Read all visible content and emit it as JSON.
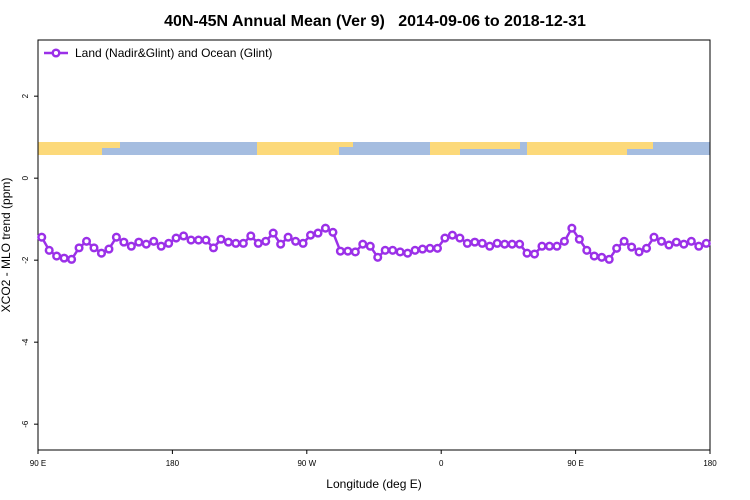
{
  "chart_data": {
    "type": "line",
    "title": "40N-45N Annual Mean (Ver 9)   2014-09-06 to 2018-12-31",
    "x_label": "Longitude (deg E)",
    "y_label": "XCO2 - MLO trend (ppm)",
    "xlim": [
      90,
      540
    ],
    "ylim": [
      -6.63,
      3.37
    ],
    "xticks": [
      {
        "value": 90,
        "label": "90 E"
      },
      {
        "value": 180,
        "label": "180"
      },
      {
        "value": 270,
        "label": "90 W"
      },
      {
        "value": 360,
        "label": "0"
      },
      {
        "value": 450,
        "label": "90 E"
      },
      {
        "value": 540,
        "label": "180"
      }
    ],
    "yticks": [
      2,
      0,
      -2,
      -4,
      -6
    ],
    "legend": "top-left",
    "series": [
      {
        "name": "Land (Nadir&Glint) and Ocean (Glint)",
        "color": "#9b30e8",
        "x": [
          92.5,
          97.5,
          102.5,
          107.5,
          112.5,
          117.5,
          122.5,
          127.5,
          132.5,
          137.5,
          142.5,
          147.5,
          152.5,
          157.5,
          162.5,
          167.5,
          172.5,
          177.5,
          182.5,
          187.5,
          192.5,
          197.5,
          202.5,
          207.5,
          212.5,
          217.5,
          222.5,
          227.5,
          232.5,
          237.5,
          242.5,
          247.5,
          252.5,
          257.5,
          262.5,
          267.5,
          272.5,
          277.5,
          282.5,
          287.5,
          292.5,
          297.5,
          302.5,
          307.5,
          312.5,
          317.5,
          322.5,
          327.5,
          332.5,
          337.5,
          342.5,
          347.5,
          352.5,
          357.5,
          362.5,
          367.5,
          372.5,
          377.5,
          382.5,
          387.5,
          392.5,
          397.5,
          402.5,
          407.5,
          412.5,
          417.5,
          422.5,
          427.5,
          432.5,
          437.5,
          442.5,
          447.5,
          452.5,
          457.5,
          462.5,
          467.5,
          472.5,
          477.5,
          482.5,
          487.5,
          492.5,
          497.5,
          502.5,
          507.5,
          512.5,
          517.5,
          522.5,
          527.5,
          532.5,
          537.5
        ],
        "values": [
          -1.44,
          -1.76,
          -1.9,
          -1.95,
          -1.98,
          -1.7,
          -1.54,
          -1.7,
          -1.83,
          -1.73,
          -1.44,
          -1.56,
          -1.66,
          -1.56,
          -1.61,
          -1.54,
          -1.66,
          -1.59,
          -1.46,
          -1.41,
          -1.51,
          -1.51,
          -1.51,
          -1.7,
          -1.49,
          -1.56,
          -1.59,
          -1.59,
          -1.41,
          -1.59,
          -1.54,
          -1.34,
          -1.61,
          -1.44,
          -1.54,
          -1.59,
          -1.39,
          -1.34,
          -1.22,
          -1.32,
          -1.78,
          -1.78,
          -1.8,
          -1.61,
          -1.66,
          -1.93,
          -1.76,
          -1.76,
          -1.8,
          -1.83,
          -1.76,
          -1.73,
          -1.71,
          -1.71,
          -1.46,
          -1.39,
          -1.46,
          -1.59,
          -1.56,
          -1.59,
          -1.66,
          -1.59,
          -1.61,
          -1.61,
          -1.61,
          -1.83,
          -1.85,
          -1.66,
          -1.66,
          -1.66,
          -1.54,
          -1.22,
          -1.49,
          -1.76,
          -1.9,
          -1.93,
          -1.98,
          -1.71,
          -1.54,
          -1.68,
          -1.8,
          -1.71,
          -1.44,
          -1.54,
          -1.63,
          -1.56,
          -1.61,
          -1.54,
          -1.66,
          -1.59
        ]
      }
    ]
  }
}
